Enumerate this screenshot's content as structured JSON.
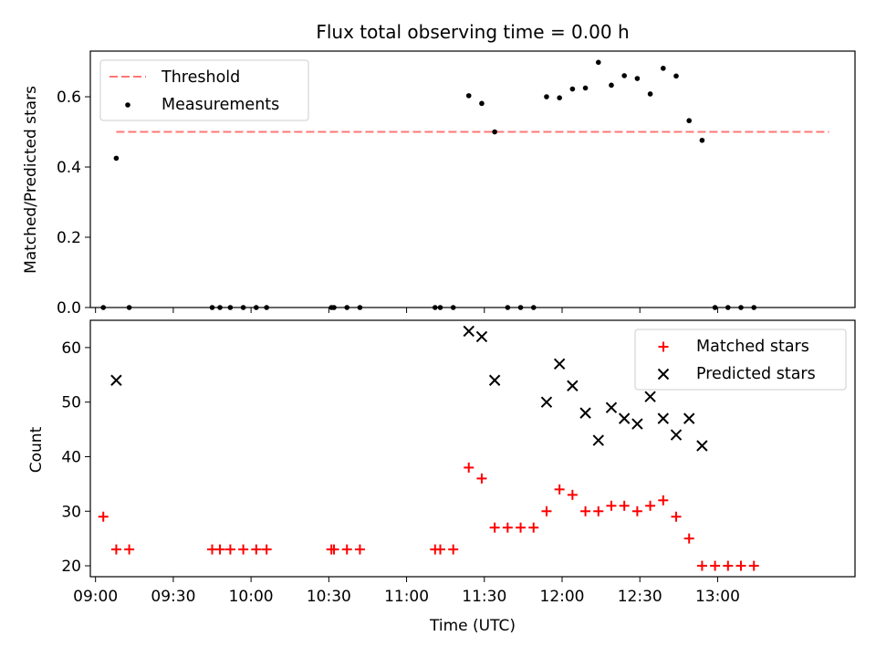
{
  "title": "Flux total observing time = 0.00 h",
  "chart_data": [
    {
      "type": "scatter",
      "ylabel": "Matched/Predicted stars",
      "xlim": [
        "08:58",
        "13:53"
      ],
      "ylim": [
        0,
        0.73
      ],
      "yticks": [
        "0.0",
        "0.2",
        "0.4",
        "0.6"
      ],
      "legend": {
        "position": "upper left",
        "threshold_label": "Threshold",
        "measurements_label": "Measurements"
      },
      "threshold": {
        "value": 0.5,
        "x_range": [
          "09:08",
          "13:43"
        ],
        "color": "#ff7777"
      },
      "series": [
        {
          "name": "Measurements",
          "color": "#000000",
          "x": [
            "09:03",
            "09:08",
            "09:13",
            "09:45",
            "09:48",
            "09:52",
            "09:57",
            "10:02",
            "10:06",
            "10:31",
            "10:32",
            "10:37",
            "10:42",
            "11:11",
            "11:13",
            "11:18",
            "11:24",
            "11:29",
            "11:34",
            "11:39",
            "11:44",
            "11:49",
            "11:54",
            "11:59",
            "12:04",
            "12:09",
            "12:14",
            "12:19",
            "12:24",
            "12:29",
            "12:34",
            "12:39",
            "12:44",
            "12:49",
            "12:54",
            "12:59",
            "13:04",
            "13:09",
            "13:14"
          ],
          "y": [
            0.0,
            0.425,
            0.0,
            0.0,
            0.0,
            0.0,
            0.0,
            0.0,
            0.0,
            0.0,
            0.0,
            0.0,
            0.0,
            0.0,
            0.0,
            0.0,
            0.603,
            0.581,
            0.5,
            0.0,
            0.0,
            0.0,
            0.6,
            0.597,
            0.622,
            0.625,
            0.698,
            0.633,
            0.66,
            0.652,
            0.608,
            0.681,
            0.659,
            0.532,
            0.476,
            0.0,
            0.0,
            0.0,
            0.0
          ]
        }
      ]
    },
    {
      "type": "scatter",
      "xlabel": "Time (UTC)",
      "ylabel": "Count",
      "xlim": [
        "08:58",
        "13:53"
      ],
      "ylim": [
        18,
        65
      ],
      "yticks": [
        "20",
        "30",
        "40",
        "50",
        "60"
      ],
      "xticks": [
        "09:00",
        "09:30",
        "10:00",
        "10:30",
        "11:00",
        "11:30",
        "12:00",
        "12:30",
        "13:00"
      ],
      "legend": {
        "position": "upper right"
      },
      "series": [
        {
          "name": "Matched stars",
          "marker": "+",
          "color": "#ff0000",
          "x": [
            "09:03",
            "09:08",
            "09:13",
            "09:45",
            "09:48",
            "09:52",
            "09:57",
            "10:02",
            "10:06",
            "10:31",
            "10:32",
            "10:37",
            "10:42",
            "11:11",
            "11:13",
            "11:18",
            "11:24",
            "11:29",
            "11:34",
            "11:39",
            "11:44",
            "11:49",
            "11:54",
            "11:59",
            "12:04",
            "12:09",
            "12:14",
            "12:19",
            "12:24",
            "12:29",
            "12:34",
            "12:39",
            "12:44",
            "12:49",
            "12:54",
            "12:59",
            "13:04",
            "13:09",
            "13:14"
          ],
          "y": [
            29,
            23,
            23,
            23,
            23,
            23,
            23,
            23,
            23,
            23,
            23,
            23,
            23,
            23,
            23,
            23,
            38,
            36,
            27,
            27,
            27,
            27,
            30,
            34,
            33,
            30,
            30,
            31,
            31,
            30,
            31,
            32,
            29,
            25,
            20,
            20,
            20,
            20,
            20
          ]
        },
        {
          "name": "Predicted stars",
          "marker": "x",
          "color": "#000000",
          "x": [
            "09:08",
            "11:24",
            "11:29",
            "11:34",
            "11:54",
            "11:59",
            "12:04",
            "12:09",
            "12:14",
            "12:19",
            "12:24",
            "12:29",
            "12:34",
            "12:39",
            "12:44",
            "12:49",
            "12:54"
          ],
          "y": [
            54,
            63,
            62,
            54,
            50,
            57,
            53,
            48,
            43,
            49,
            47,
            46,
            51,
            47,
            44,
            47,
            42
          ]
        }
      ]
    }
  ]
}
